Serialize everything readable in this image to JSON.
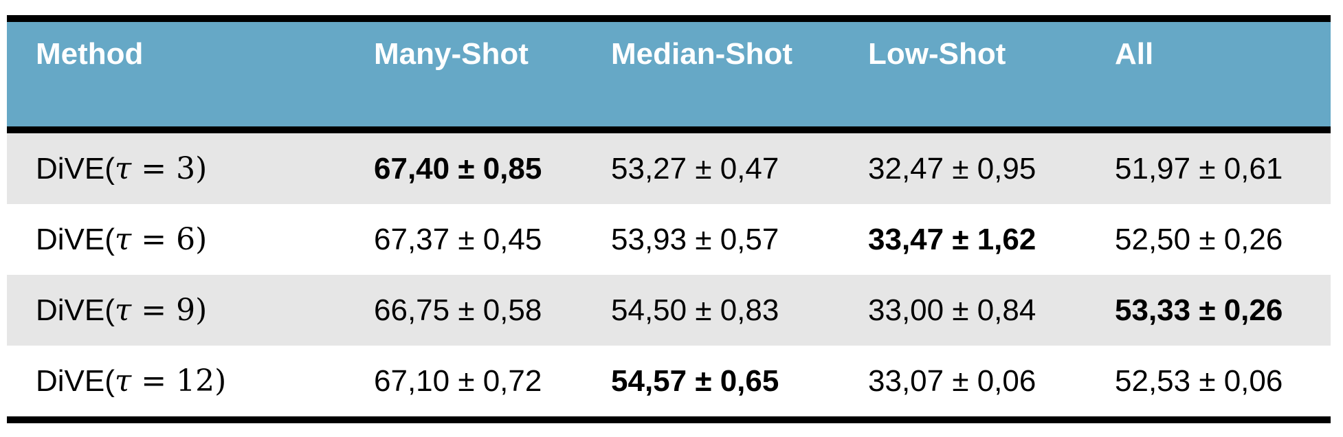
{
  "table": {
    "headers": [
      "Method",
      "Many-Shot",
      "Median-Shot",
      "Low-Shot",
      "All"
    ],
    "rows": [
      {
        "method": {
          "prefix": "DiVE(",
          "symbol": "τ",
          "rest": " = 3)"
        },
        "cells": [
          "67,40 ± 0,85",
          "53,27 ± 0,47",
          "32,47 ± 0,95",
          "51,97 ± 0,61"
        ],
        "bold": [
          true,
          false,
          false,
          false
        ]
      },
      {
        "method": {
          "prefix": "DiVE(",
          "symbol": "τ",
          "rest": " = 6)"
        },
        "cells": [
          "67,37 ± 0,45",
          "53,93 ± 0,57",
          "33,47 ± 1,62",
          "52,50 ± 0,26"
        ],
        "bold": [
          false,
          false,
          true,
          false
        ]
      },
      {
        "method": {
          "prefix": "DiVE(",
          "symbol": "τ",
          "rest": " = 9)"
        },
        "cells": [
          "66,75 ± 0,58",
          "54,50 ± 0,83",
          "33,00 ± 0,84",
          "53,33 ± 0,26"
        ],
        "bold": [
          false,
          false,
          false,
          true
        ]
      },
      {
        "method": {
          "prefix": "DiVE(",
          "symbol": "τ",
          "rest": " = 12)"
        },
        "cells": [
          "67,10 ± 0,72",
          "54,57 ± 0,65",
          "33,07 ± 0,06",
          "52,53 ± 0,06"
        ],
        "bold": [
          false,
          true,
          false,
          false
        ]
      }
    ]
  },
  "colors": {
    "header_bg": "#66a8c6",
    "header_text": "#ffffff",
    "shaded_row": "#e6e6e6",
    "rule": "#000000"
  }
}
